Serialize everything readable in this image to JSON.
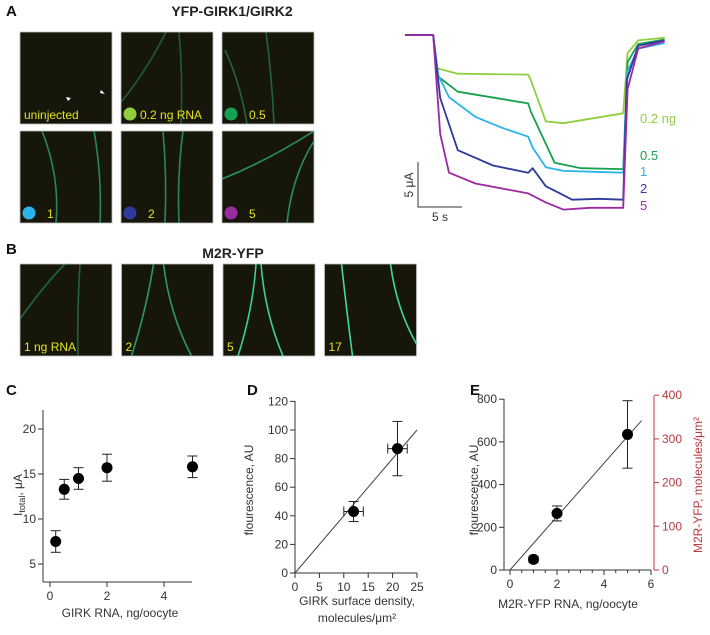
{
  "panels": {
    "A": {
      "label": "A",
      "title": "YFP-GIRK1/GIRK2",
      "images": [
        {
          "label": "uninjected",
          "dot_color": null
        },
        {
          "label": "0.2 ng RNA",
          "dot_color": "#8fce3f"
        },
        {
          "label": "0.5",
          "dot_color": "#16a050"
        },
        {
          "label": "1",
          "dot_color": "#2ab4ea"
        },
        {
          "label": "2",
          "dot_color": "#2e3a9c"
        },
        {
          "label": "5",
          "dot_color": "#9a2aa0"
        }
      ],
      "scale_bar": {
        "current": "5 μA",
        "time": "5 s"
      }
    },
    "B": {
      "label": "B",
      "title": "M2R-YFP",
      "images": [
        {
          "label": "1 ng RNA"
        },
        {
          "label": "2"
        },
        {
          "label": "5"
        },
        {
          "label": "17"
        }
      ]
    },
    "C": {
      "label": "C"
    },
    "D": {
      "label": "D"
    },
    "E": {
      "label": "E"
    }
  },
  "colors": {
    "micrograph_bg": "#16170a",
    "membrane": "#2fb070",
    "label_yellow": "#e6e41e",
    "right_axis": "#b83a3f"
  },
  "chart_data": [
    {
      "id": "A-traces",
      "type": "line",
      "xunit": "s",
      "yunit": "μA",
      "series": [
        {
          "name": "0.2 ng",
          "color": "#8fce3f",
          "t": [
            0,
            3.2,
            3.6,
            6,
            14,
            14.3,
            16,
            18,
            24.8,
            25.3,
            26.5,
            29.5
          ],
          "i": [
            0,
            0,
            -3.7,
            -4.3,
            -4.4,
            -5,
            -9.6,
            -9.8,
            -8.7,
            -2,
            -0.6,
            -0.3
          ]
        },
        {
          "name": "0.5",
          "color": "#16a050",
          "t": [
            0,
            3.2,
            3.6,
            6,
            14,
            14.3,
            17,
            20,
            24.8,
            25.3,
            26.5,
            29.5
          ],
          "i": [
            0,
            0,
            -4.5,
            -6.3,
            -7.6,
            -8.5,
            -14.2,
            -14.8,
            -14.9,
            -3,
            -1,
            -0.5
          ]
        },
        {
          "name": "1",
          "color": "#2ab4ea",
          "t": [
            0,
            3.2,
            3.8,
            5,
            8,
            11,
            14,
            14.5,
            16,
            18,
            24.8,
            25.3,
            26.5,
            29.5
          ],
          "i": [
            0,
            0,
            -4.5,
            -6.9,
            -9.1,
            -10.3,
            -11.3,
            -12.5,
            -14.7,
            -15.1,
            -15.3,
            -4,
            -1.5,
            -0.9
          ]
        },
        {
          "name": "2",
          "color": "#2e3a9c",
          "t": [
            0,
            3.2,
            4,
            6,
            10,
            14,
            14.5,
            16,
            19,
            22,
            24.8,
            25.2,
            26.5,
            29.5
          ],
          "i": [
            0,
            0,
            -7,
            -12.8,
            -14.5,
            -15.3,
            -14.8,
            -16.8,
            -18.3,
            -18.2,
            -18.3,
            -5,
            -1.2,
            -0.6
          ]
        },
        {
          "name": "5",
          "color": "#9a2aa0",
          "t": [
            0,
            3.2,
            4,
            5,
            8,
            14,
            16,
            18,
            21,
            24.8,
            25.3,
            26.5,
            29.5
          ],
          "i": [
            0,
            0,
            -11,
            -15.3,
            -16.5,
            -17.6,
            -18.6,
            -19.4,
            -19.2,
            -19.2,
            -6,
            -1.5,
            -0.7
          ]
        }
      ]
    },
    {
      "id": "C",
      "type": "scatter",
      "xlabel": "GIRK RNA, ng/oocyte",
      "ylabel_main": "I",
      "ylabel_sub": "total",
      "ylabel_unit": ", μA",
      "xticks": [
        0,
        2,
        4
      ],
      "yticks": [
        5,
        10,
        15,
        20
      ],
      "xlim": [
        0,
        5.2
      ],
      "ylim": [
        3,
        22
      ],
      "points": [
        {
          "x": 0.2,
          "y": 7.5,
          "yerr": 1.2
        },
        {
          "x": 0.5,
          "y": 13.3,
          "yerr": 1.1
        },
        {
          "x": 1,
          "y": 14.5,
          "yerr": 1.2
        },
        {
          "x": 2,
          "y": 15.7,
          "yerr": 1.5
        },
        {
          "x": 5,
          "y": 15.8,
          "yerr": 1.2
        }
      ]
    },
    {
      "id": "D",
      "type": "scatter",
      "xlabel": "GIRK surface density,",
      "xlabel2": "molecules/μm²",
      "ylabel": "flourescence, AU",
      "xticks": [
        0,
        5,
        10,
        15,
        20,
        25
      ],
      "yticks": [
        0,
        20,
        40,
        60,
        80,
        100,
        120
      ],
      "xlim": [
        0,
        25
      ],
      "ylim": [
        0,
        120
      ],
      "points": [
        {
          "x": 12,
          "y": 43,
          "xerr": 2,
          "yerr": 7
        },
        {
          "x": 21,
          "y": 87,
          "xerr": 2,
          "yerr": 19
        }
      ],
      "fit_line": {
        "x": [
          0,
          25
        ],
        "y": [
          0,
          100
        ]
      }
    },
    {
      "id": "E",
      "type": "scatter",
      "xlabel": "M2R-YFP RNA, ng/oocyte",
      "ylabel": "flourescence, AU",
      "ylabel_right": "M2R-YFP, molecules/μm²",
      "xticks": [
        0,
        2,
        4,
        6
      ],
      "yticks": [
        0,
        200,
        400,
        600,
        800
      ],
      "yticks_right": [
        0,
        100,
        200,
        300,
        400
      ],
      "xlim": [
        0,
        6
      ],
      "ylim": [
        0,
        800
      ],
      "ylim_right": [
        0,
        400
      ],
      "points": [
        {
          "x": 1,
          "y": 50,
          "yerr": 15
        },
        {
          "x": 2,
          "y": 265,
          "yerr": 35
        },
        {
          "x": 5,
          "y": 635,
          "yerr": 158
        }
      ],
      "fit_line": {
        "x": [
          0,
          5.6
        ],
        "y": [
          0,
          700
        ]
      }
    }
  ]
}
